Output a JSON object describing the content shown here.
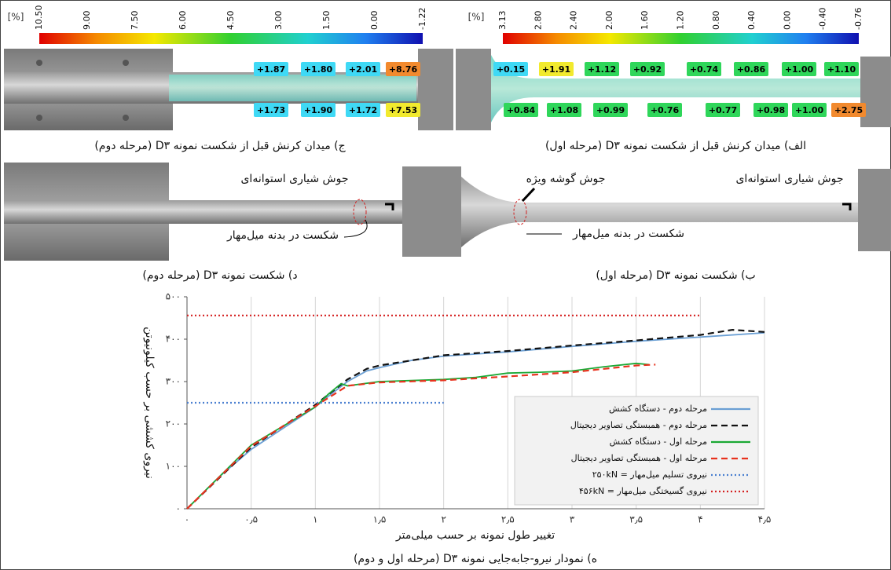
{
  "panels": {
    "strain_stage2": {
      "unit": "[%]",
      "scale_labels": [
        "10.50",
        "9.00",
        "7.50",
        "6.00",
        "4.50",
        "3.00",
        "1.50",
        "0.00",
        "-1.22"
      ],
      "top_labels": [
        "+1.87",
        "+1.80",
        "+2.01",
        "+8.76"
      ],
      "top_colors": [
        "#3fd9f5",
        "#3fd9f5",
        "#3fd9f5",
        "#f28a2e"
      ],
      "bottom_labels": [
        "+1.73",
        "+1.90",
        "+1.72",
        "+7.53"
      ],
      "bottom_colors": [
        "#3fd9f5",
        "#3fd9f5",
        "#3fd9f5",
        "#f2ea2e"
      ],
      "caption": "ج) میدان کرنش قبل از شکست نمونه D۳ (مرحله دوم)"
    },
    "strain_stage1": {
      "unit": "[%]",
      "scale_labels": [
        "3.13",
        "2.80",
        "2.40",
        "2.00",
        "1.60",
        "1.20",
        "0.80",
        "0.40",
        "0.00",
        "-0.40",
        "-0.76"
      ],
      "top_labels": [
        "+0.15",
        "+1.91",
        "+1.12",
        "+0.92",
        "+0.74",
        "+0.86",
        "+1.00",
        "+1.10"
      ],
      "top_colors": [
        "#3fd9f5",
        "#f2ea2e",
        "#2fd65a",
        "#2fd65a",
        "#2fd65a",
        "#2fd65a",
        "#2fd65a",
        "#2fd65a"
      ],
      "bottom_labels": [
        "+0.84",
        "+1.08",
        "+0.99",
        "+0.76",
        "+0.77",
        "+0.98",
        "+1.00",
        "+2.75"
      ],
      "bottom_colors": [
        "#2fd65a",
        "#2fd65a",
        "#2fd65a",
        "#2fd65a",
        "#2fd65a",
        "#2fd65a",
        "#2fd65a",
        "#f28a2e"
      ],
      "caption": "الف) میدان کرنش قبل از شکست نمونه D۳ (مرحله اول)"
    },
    "fracture_stage2": {
      "weld": "جوش شیاری استوانه‌ای",
      "fracture": "شکست در بدنه میل‌مهار",
      "caption": "د) شکست نمونه D۳ (مرحله دوم)"
    },
    "fracture_stage1": {
      "fillet": "جوش گوشه ویژه",
      "weld": "جوش شیاری استوانه‌ای",
      "fracture": "شکست در بدنه میل‌مهار",
      "caption": "ب) شکست نمونه D۳ (مرحله اول)"
    }
  },
  "chart_data": {
    "type": "line",
    "caption": "ه) نمودار نیرو-جابه‌جایی نمونه D۳ (مرحله اول و دوم)",
    "x_label": "تغییر طول نمونه بر حسب میلی‌متر",
    "y_label": "نیروی کششی بر حسب کیلونیوتن",
    "xlim": [
      0,
      4.5
    ],
    "ylim": [
      0,
      500
    ],
    "grid": "x",
    "xticks": [
      {
        "value": 0,
        "label": "۰"
      },
      {
        "value": 0.5,
        "label": "۰٫۵"
      },
      {
        "value": 1,
        "label": "۱"
      },
      {
        "value": 1.5,
        "label": "۱٫۵"
      },
      {
        "value": 2,
        "label": "۲"
      },
      {
        "value": 2.5,
        "label": "۲٫۵"
      },
      {
        "value": 3,
        "label": "۳"
      },
      {
        "value": 3.5,
        "label": "۳٫۵"
      },
      {
        "value": 4,
        "label": "۴"
      },
      {
        "value": 4.5,
        "label": "۴٫۵"
      }
    ],
    "yticks": [
      {
        "value": 0,
        "label": "۰"
      },
      {
        "value": 100,
        "label": "۱۰۰"
      },
      {
        "value": 200,
        "label": "۲۰۰"
      },
      {
        "value": 300,
        "label": "۳۰۰"
      },
      {
        "value": 400,
        "label": "۴۰۰"
      },
      {
        "value": 500,
        "label": "۵۰۰"
      }
    ],
    "series": [
      {
        "name": "مرحله دوم - دستگاه کشش",
        "color": "#6a9fd4",
        "dash": "solid",
        "x": [
          0,
          0.25,
          0.5,
          0.75,
          1,
          1.1,
          1.25,
          1.4,
          1.5,
          1.75,
          2,
          2.5,
          3,
          3.5,
          4,
          4.5
        ],
        "values": [
          0,
          75,
          140,
          190,
          240,
          265,
          300,
          325,
          333,
          350,
          360,
          370,
          383,
          395,
          405,
          415
        ]
      },
      {
        "name": "مرحله دوم - همبستگی تصاویر دیجیتال",
        "color": "#111111",
        "dash": "dashed",
        "x": [
          0,
          0.5,
          1,
          1.25,
          1.4,
          1.5,
          2,
          2.5,
          3,
          3.5,
          4,
          4.25,
          4.5
        ],
        "values": [
          0,
          145,
          245,
          305,
          330,
          338,
          362,
          372,
          385,
          397,
          410,
          422,
          417
        ]
      },
      {
        "name": "مرحله اول - دستگاه کشش",
        "color": "#1aa834",
        "dash": "solid",
        "x": [
          0,
          0.5,
          0.75,
          1,
          1.1,
          1.2,
          1.25,
          1.5,
          2,
          2.25,
          2.5,
          2.75,
          3,
          3.25,
          3.5,
          3.6
        ],
        "values": [
          0,
          150,
          195,
          240,
          270,
          295,
          290,
          300,
          305,
          310,
          320,
          322,
          325,
          335,
          343,
          340
        ]
      },
      {
        "name": "مرحله اول - همبستگی تصاویر دیجیتال",
        "color": "#e8321e",
        "dash": "dashed",
        "x": [
          0,
          0.5,
          1,
          1.25,
          1.5,
          2,
          2.5,
          3,
          3.5,
          3.65
        ],
        "values": [
          0,
          148,
          242,
          290,
          298,
          303,
          312,
          322,
          338,
          340
        ]
      },
      {
        "name": "نیروی تسلیم میل‌مهار = ۲۵۰kN",
        "color": "#4a7fd0",
        "dash": "dotted",
        "x": [
          0,
          2
        ],
        "values": [
          250,
          250
        ]
      },
      {
        "name": "نیروی گسیختگی میل‌مهار = ۴۵۶kN",
        "color": "#d42020",
        "dash": "dotted",
        "x": [
          0,
          4
        ],
        "values": [
          456,
          456
        ]
      }
    ]
  }
}
